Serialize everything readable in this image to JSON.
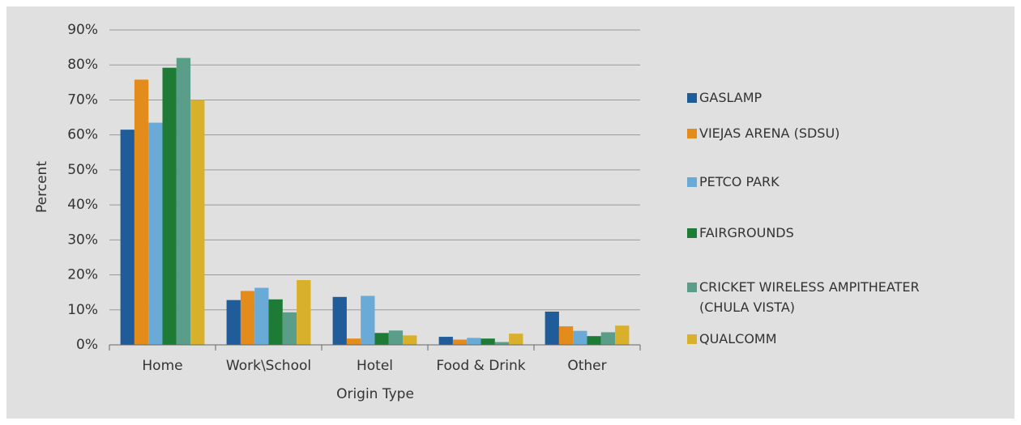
{
  "chart_data": {
    "type": "bar",
    "xlabel": "Origin Type",
    "ylabel": "Percent",
    "categories": [
      "Home",
      "Work\\School",
      "Hotel",
      "Food & Drink",
      "Other"
    ],
    "series": [
      {
        "name": "GASLAMP",
        "color": "#1f5c99",
        "values": [
          61.5,
          12.8,
          13.7,
          2.3,
          9.5
        ]
      },
      {
        "name": "VIEJAS ARENA (SDSU)",
        "color": "#e38b1b",
        "values": [
          75.8,
          15.4,
          1.8,
          1.5,
          5.3
        ]
      },
      {
        "name": "PETCO PARK",
        "color": "#6aaad6",
        "values": [
          63.5,
          16.3,
          14.0,
          2.0,
          4.0
        ]
      },
      {
        "name": "FAIRGROUNDS",
        "color": "#1e7b36",
        "values": [
          79.2,
          13.0,
          3.4,
          1.8,
          2.5
        ]
      },
      {
        "name": "CRICKET WIRELESS AMPITHEATER (CHULA VISTA)",
        "color": "#5a9e89",
        "values": [
          82.0,
          9.3,
          4.1,
          0.8,
          3.6
        ]
      },
      {
        "name": "QUALCOMM",
        "color": "#d9b02c",
        "values": [
          70.0,
          18.5,
          2.7,
          3.2,
          5.5
        ]
      }
    ],
    "ylim": [
      0,
      90
    ],
    "yticks": [
      {
        "value": 0,
        "label": "0%"
      },
      {
        "value": 10,
        "label": "10%"
      },
      {
        "value": 20,
        "label": "20%"
      },
      {
        "value": 30,
        "label": "30%"
      },
      {
        "value": 40,
        "label": "40%"
      },
      {
        "value": 50,
        "label": "50%"
      },
      {
        "value": 60,
        "label": "60%"
      },
      {
        "value": 70,
        "label": "70%"
      },
      {
        "value": 80,
        "label": "80%"
      },
      {
        "value": 90,
        "label": "90%"
      }
    ],
    "grid": true,
    "legend": "right"
  }
}
